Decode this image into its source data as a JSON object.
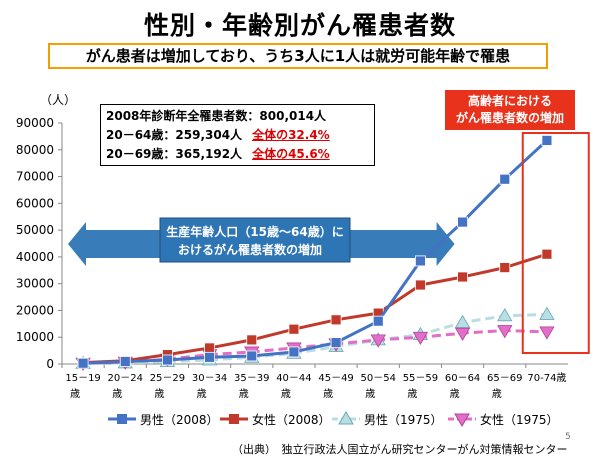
{
  "chart_data": {
    "type": "line",
    "title": "性別・年齢別がん罹患者数",
    "subtitle": "がん患者は増加しており、うち3人に1人は就労可能年齢で罹患",
    "ylabel": "（人）",
    "ylim": [
      0,
      90000
    ],
    "yticks": [
      0,
      10000,
      20000,
      30000,
      40000,
      50000,
      60000,
      70000,
      80000,
      90000
    ],
    "categories": [
      "15－19歳",
      "20－24歳",
      "25－29歳",
      "30－34歳",
      "35－39歳",
      "40－44歳",
      "45－49歳",
      "50－54歳",
      "55－59歳",
      "60－64歳",
      "65－69歳",
      "70-74歳"
    ],
    "category_lines": [
      [
        "15－19",
        "歳"
      ],
      [
        "20－24",
        "歳"
      ],
      [
        "25－29",
        "歳"
      ],
      [
        "30－34",
        "歳"
      ],
      [
        "35－39",
        "歳"
      ],
      [
        "40－44",
        "歳"
      ],
      [
        "45－49",
        "歳"
      ],
      [
        "50－54",
        "歳"
      ],
      [
        "55－59",
        "歳"
      ],
      [
        "60－64",
        "歳"
      ],
      [
        "65－69",
        "歳"
      ],
      [
        "70-74歳",
        ""
      ]
    ],
    "series": [
      {
        "name": "男性（2008）",
        "color": "#4472c4",
        "marker": "square",
        "dash": false,
        "values": [
          300,
          900,
          1500,
          2500,
          3000,
          4500,
          8000,
          16000,
          38500,
          53000,
          69000,
          83500
        ]
      },
      {
        "name": "女性（2008）",
        "color": "#c0392b",
        "marker": "square",
        "dash": false,
        "values": [
          500,
          1200,
          3500,
          6000,
          9000,
          13000,
          16500,
          19000,
          29500,
          32500,
          36000,
          41000
        ]
      },
      {
        "name": "男性（1975）",
        "color": "#b8dde3",
        "marker": "triangle",
        "dash": true,
        "values": [
          200,
          400,
          900,
          1500,
          2500,
          4000,
          6500,
          9000,
          11000,
          15500,
          18000,
          18500
        ]
      },
      {
        "name": "女性（1975）",
        "color": "#e36ec7",
        "marker": "triangle-down",
        "dash": true,
        "values": [
          300,
          700,
          1800,
          3500,
          4500,
          6000,
          7500,
          9000,
          10000,
          11500,
          12500,
          12000
        ]
      }
    ],
    "legend_position": "bottom",
    "grid": false
  },
  "stats": {
    "line1": "2008年診断年全罹患者数：800,014人",
    "line2": "20－64歳：259,304人",
    "line2_pct": "全体の32.4%",
    "line3": "20－69歳：365,192人",
    "line3_pct": "全体の45.6%"
  },
  "annotations": {
    "working_age_line1": "生産年齢人口（15歳～64歳）に",
    "working_age_line2": "おけるがん罹患者数の増加",
    "elderly_line1": "高齢者における",
    "elderly_line2": "がん罹患者数の増加"
  },
  "source": "（出典）　独立行政法人国立がん研究センターがん対策情報センター",
  "page_number": "5",
  "colors": {
    "subtitle_border": "#f2a000",
    "arrow_blue": "#2e75b6",
    "highlight_red": "#e8321c"
  }
}
